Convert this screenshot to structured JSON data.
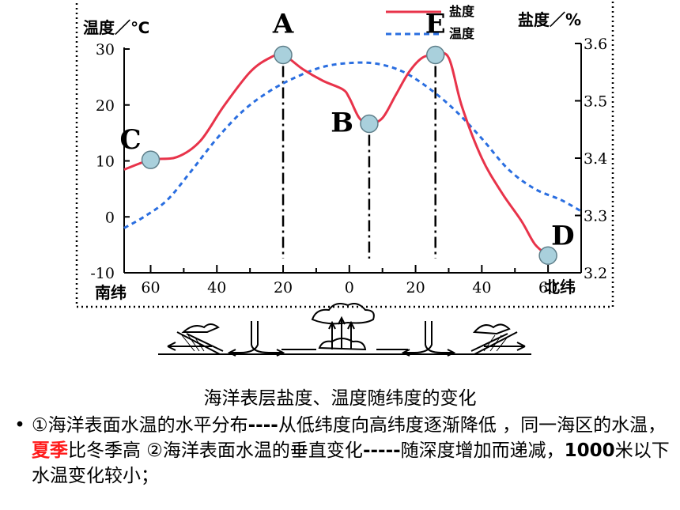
{
  "chart_data": {
    "type": "line",
    "x_ticks": [
      "60",
      "40",
      "20",
      "0",
      "20",
      "40",
      "60"
    ],
    "x_tick_values": [
      -60,
      -40,
      -20,
      0,
      20,
      40,
      60
    ],
    "x_left_label": "南纬",
    "x_right_label": "北纬",
    "xlim": [
      -68,
      70
    ],
    "left_axis": {
      "label": "温度／℃",
      "ticks": [
        "30",
        "20",
        "10",
        "0",
        "-10"
      ],
      "tick_values": [
        30,
        20,
        10,
        0,
        -10
      ],
      "range": [
        -10,
        30
      ]
    },
    "right_axis": {
      "label": "盐度／%",
      "ticks": [
        "3.6",
        "3.5",
        "3.4",
        "3.3",
        "3.2"
      ],
      "tick_values": [
        3.6,
        3.5,
        3.4,
        3.3,
        3.2
      ],
      "range": [
        3.2,
        3.6
      ]
    },
    "legend_position": "top-right",
    "series": [
      {
        "name": "盐度",
        "axis": "right",
        "color": "#e8334a",
        "style": "solid",
        "x": [
          -68,
          -60,
          -52,
          -45,
          -38,
          -30,
          -24,
          -20,
          -14,
          -8,
          -2,
          0,
          3,
          6,
          10,
          14,
          18,
          22,
          26,
          30,
          34,
          40,
          46,
          52,
          56,
          60
        ],
        "y": [
          3.38,
          3.397,
          3.402,
          3.43,
          3.49,
          3.55,
          3.575,
          3.58,
          3.555,
          3.535,
          3.52,
          3.505,
          3.47,
          3.46,
          3.47,
          3.51,
          3.55,
          3.575,
          3.58,
          3.575,
          3.49,
          3.4,
          3.34,
          3.29,
          3.25,
          3.23
        ]
      },
      {
        "name": "温度",
        "axis": "left",
        "color": "#2a6ee0",
        "style": "dashed",
        "x": [
          -68,
          -62,
          -55,
          -48,
          -40,
          -32,
          -24,
          -16,
          -8,
          0,
          8,
          16,
          24,
          32,
          40,
          48,
          56,
          64,
          70
        ],
        "y": [
          -2,
          0,
          3,
          8,
          14,
          19,
          22.5,
          25,
          26.8,
          27.5,
          27.4,
          26,
          23,
          19,
          14,
          8.5,
          5,
          3,
          1
        ]
      }
    ],
    "points": [
      {
        "label": "A",
        "series": "盐度",
        "x": -20,
        "y": 3.58,
        "label_offset": "above"
      },
      {
        "label": "B",
        "series": "盐度",
        "x": 6,
        "y": 3.46,
        "label_offset": "left"
      },
      {
        "label": "C",
        "series": "盐度",
        "x": -60,
        "y": 3.397,
        "label_offset": "above-left"
      },
      {
        "label": "D",
        "series": "盐度",
        "x": 60,
        "y": 3.23,
        "label_offset": "above-right"
      },
      {
        "label": "E",
        "series": "盐度",
        "x": 26,
        "y": 3.58,
        "label_offset": "above"
      }
    ],
    "guide_lines_at_x": [
      -20,
      6,
      26
    ]
  },
  "caption": "海洋表层盐度、温度随纬度的变化",
  "bullet": {
    "marker": "•",
    "part1": "①海洋表面水温的水平分布",
    "dash1": "----",
    "part2": "从低纬度向高纬度逐渐降低 ，同一海区的水温，",
    "highlight": "夏季",
    "part3": "比冬季高  ②海洋表面水温的垂直变化",
    "dash2": "-----",
    "part4": "随深度增加而递减，",
    "bold_value": "1000",
    "part5": "米以下水温变化较小；"
  }
}
